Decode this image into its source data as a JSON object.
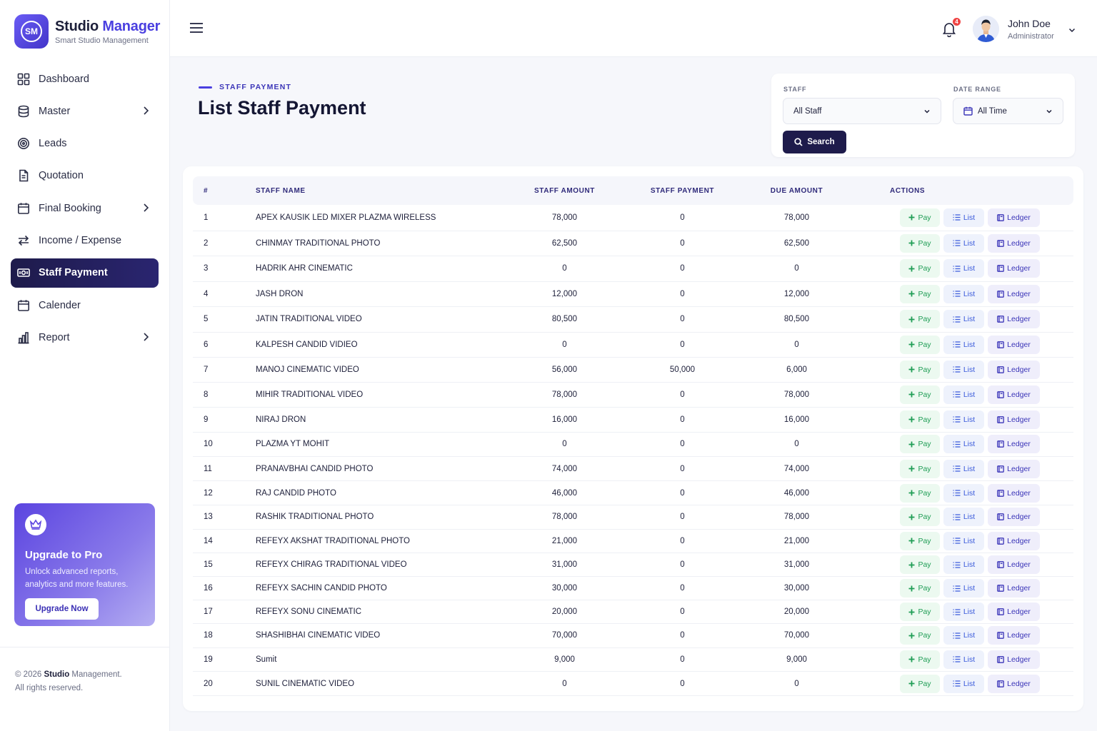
{
  "brand": {
    "logo_text": "SM",
    "title_part1": "Studio",
    "title_part2": "Manager",
    "subtitle": "Smart Studio Management"
  },
  "nav": [
    {
      "label": "Dashboard",
      "icon": "grid-icon",
      "chevron": false,
      "active": false
    },
    {
      "label": "Master",
      "icon": "database-icon",
      "chevron": true,
      "active": false
    },
    {
      "label": "Leads",
      "icon": "target-icon",
      "chevron": false,
      "active": false
    },
    {
      "label": "Quotation",
      "icon": "document-icon",
      "chevron": false,
      "active": false
    },
    {
      "label": "Final Booking",
      "icon": "calendar-icon",
      "chevron": true,
      "active": false
    },
    {
      "label": "Income / Expense",
      "icon": "arrows-exchange-icon",
      "chevron": false,
      "active": false
    },
    {
      "label": "Staff Payment",
      "icon": "cash-icon",
      "chevron": false,
      "active": true
    },
    {
      "label": "Calender",
      "icon": "calendar-icon",
      "chevron": false,
      "active": false
    },
    {
      "label": "Report",
      "icon": "bar-chart-icon",
      "chevron": true,
      "active": false
    }
  ],
  "promo": {
    "title": "Upgrade to Pro",
    "description": "Unlock advanced reports, analytics and more features.",
    "button": "Upgrade Now",
    "icon": "crown-icon"
  },
  "footer": {
    "prefix": "© 2026 ",
    "brand": "Studio",
    "suffix": " Management.",
    "line2": "All rights reserved."
  },
  "header": {
    "notification_count": "4",
    "user_name": "John Doe",
    "user_role": "Administrator"
  },
  "page": {
    "eyebrow": "STAFF PAYMENT",
    "title": "List Staff Payment"
  },
  "filters": {
    "staff_label": "STAFF",
    "staff_value": "All Staff",
    "date_label": "DATE RANGE",
    "date_value": "All Time",
    "search_button": "Search"
  },
  "table": {
    "columns": [
      "#",
      "STAFF NAME",
      "STAFF AMOUNT",
      "STAFF PAYMENT",
      "DUE AMOUNT",
      "ACTIONS"
    ],
    "actions": {
      "pay": "Pay",
      "list": "List",
      "ledger": "Ledger"
    },
    "rows": [
      [
        "1",
        "APEX KAUSIK LED MIXER PLAZMA WIRELESS",
        "78,000",
        "0",
        "78,000"
      ],
      [
        "2",
        "CHINMAY TRADITIONAL PHOTO",
        "62,500",
        "0",
        "62,500"
      ],
      [
        "3",
        "HADRIK AHR CINEMATIC",
        "0",
        "0",
        "0"
      ],
      [
        "4",
        "JASH DRON",
        "12,000",
        "0",
        "12,000"
      ],
      [
        "5",
        "JATIN TRADITIONAL VIDEO",
        "80,500",
        "0",
        "80,500"
      ],
      [
        "6",
        "KALPESH CANDID VIDIEO",
        "0",
        "0",
        "0"
      ],
      [
        "7",
        "MANOJ CINEMATIC VIDEO",
        "56,000",
        "50,000",
        "6,000"
      ],
      [
        "8",
        "MIHIR TRADITIONAL VIDEO",
        "78,000",
        "0",
        "78,000"
      ],
      [
        "9",
        "NIRAJ DRON",
        "16,000",
        "0",
        "16,000"
      ],
      [
        "10",
        "PLAZMA YT MOHIT",
        "0",
        "0",
        "0"
      ],
      [
        "11",
        "PRANAVBHAI CANDID PHOTO",
        "74,000",
        "0",
        "74,000"
      ],
      [
        "12",
        "RAJ CANDID PHOTO",
        "46,000",
        "0",
        "46,000"
      ],
      [
        "13",
        "RASHIK TRADITIONAL PHOTO",
        "78,000",
        "0",
        "78,000"
      ],
      [
        "14",
        "REFEYX AKSHAT TRADITIONAL PHOTO",
        "21,000",
        "0",
        "21,000"
      ],
      [
        "15",
        "REFEYX CHIRAG TRADITIONAL VIDEO",
        "31,000",
        "0",
        "31,000"
      ],
      [
        "16",
        "REFEYX SACHIN CANDID PHOTO",
        "30,000",
        "0",
        "30,000"
      ],
      [
        "17",
        "REFEYX SONU CINEMATIC",
        "20,000",
        "0",
        "20,000"
      ],
      [
        "18",
        "SHASHIBHAI CINEMATIC VIDEO",
        "70,000",
        "0",
        "70,000"
      ],
      [
        "19",
        "Sumit",
        "9,000",
        "0",
        "9,000"
      ],
      [
        "20",
        "SUNIL CINEMATIC VIDEO",
        "0",
        "0",
        "0"
      ]
    ]
  },
  "colors": {
    "accent": "#4a3fe0",
    "active_nav": "#1e1b4b",
    "pay_green": "#1f9d55",
    "list_blue": "#3b5bdb",
    "ledger_indigo": "#3b35b8"
  }
}
